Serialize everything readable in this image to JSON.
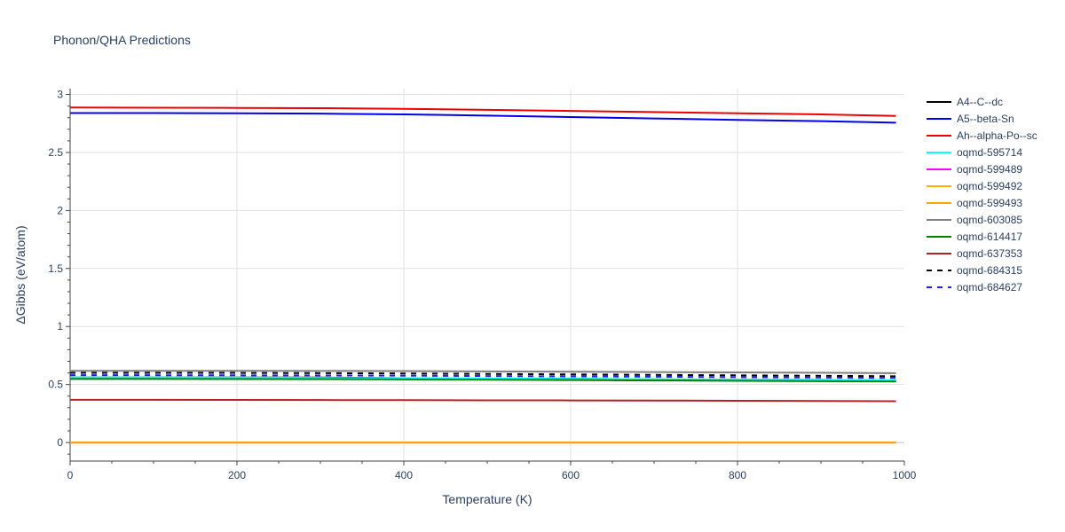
{
  "chart_data": {
    "type": "line",
    "title": "Phonon/QHA Predictions",
    "xlabel": "Temperature (K)",
    "ylabel": "ΔGibbs (eV/atom)",
    "xlim": [
      0,
      1000
    ],
    "ylim": [
      -0.16,
      3.05
    ],
    "xticks": [
      0,
      200,
      400,
      600,
      800,
      1000
    ],
    "xtick_labels": [
      "0",
      "200",
      "400",
      "600",
      "800",
      "1000"
    ],
    "yticks": [
      0,
      0.5,
      1,
      1.5,
      2,
      2.5,
      3
    ],
    "ytick_labels": [
      "0",
      "0.5",
      "1",
      "1.5",
      "2",
      "2.5",
      "3"
    ],
    "grid": true,
    "legend_position": "right",
    "x": [
      0,
      100,
      200,
      300,
      400,
      500,
      600,
      700,
      800,
      900,
      990
    ],
    "series": [
      {
        "name": "A4--C--dc",
        "color": "#000000",
        "dash": "solid",
        "values": [
          0.56,
          0.56,
          0.56,
          0.56,
          0.555,
          0.55,
          0.55,
          0.545,
          0.54,
          0.54,
          0.535
        ]
      },
      {
        "name": "A5--beta-Sn",
        "color": "#0000ee",
        "dash": "solid",
        "values": [
          2.84,
          2.84,
          2.838,
          2.835,
          2.828,
          2.818,
          2.805,
          2.793,
          2.781,
          2.77,
          2.757
        ]
      },
      {
        "name": "Ah--alpha-Po--sc",
        "color": "#ee0000",
        "dash": "solid",
        "values": [
          2.888,
          2.886,
          2.884,
          2.882,
          2.876,
          2.868,
          2.858,
          2.848,
          2.838,
          2.828,
          2.815
        ]
      },
      {
        "name": "oqmd-595714",
        "color": "#00ffff",
        "dash": "solid",
        "values": [
          0.56,
          0.56,
          0.559,
          0.557,
          0.555,
          0.552,
          0.549,
          0.546,
          0.543,
          0.54,
          0.537
        ]
      },
      {
        "name": "oqmd-599489",
        "color": "#ff00ff",
        "dash": "solid",
        "values": [
          0,
          0,
          0,
          0,
          0,
          0,
          0,
          0,
          0,
          0,
          0
        ]
      },
      {
        "name": "oqmd-599492",
        "color": "#ffb000",
        "dash": "solid",
        "values": [
          0,
          0,
          0,
          0,
          0,
          0,
          0,
          0,
          0,
          0,
          0
        ]
      },
      {
        "name": "oqmd-599493",
        "color": "#ffa500",
        "dash": "solid",
        "values": [
          0,
          0,
          0,
          0,
          0,
          0,
          0,
          0,
          0,
          0,
          0
        ]
      },
      {
        "name": "oqmd-603085",
        "color": "#808080",
        "dash": "solid",
        "values": [
          0.618,
          0.618,
          0.618,
          0.617,
          0.616,
          0.613,
          0.61,
          0.607,
          0.604,
          0.601,
          0.598
        ]
      },
      {
        "name": "oqmd-614417",
        "color": "#008000",
        "dash": "solid",
        "values": [
          0.548,
          0.548,
          0.547,
          0.546,
          0.544,
          0.541,
          0.538,
          0.535,
          0.532,
          0.529,
          0.526
        ]
      },
      {
        "name": "oqmd-637353",
        "color": "#b22222",
        "dash": "solid",
        "values": [
          0.368,
          0.368,
          0.367,
          0.366,
          0.365,
          0.364,
          0.363,
          0.362,
          0.36,
          0.358,
          0.356
        ]
      },
      {
        "name": "oqmd-684315",
        "color": "#000000",
        "dash": "dash",
        "values": [
          0.6,
          0.6,
          0.6,
          0.598,
          0.595,
          0.591,
          0.587,
          0.583,
          0.579,
          0.575,
          0.571
        ]
      },
      {
        "name": "oqmd-684627",
        "color": "#2020ff",
        "dash": "dash",
        "values": [
          0.58,
          0.58,
          0.579,
          0.578,
          0.576,
          0.573,
          0.57,
          0.567,
          0.563,
          0.56,
          0.557
        ]
      }
    ]
  }
}
